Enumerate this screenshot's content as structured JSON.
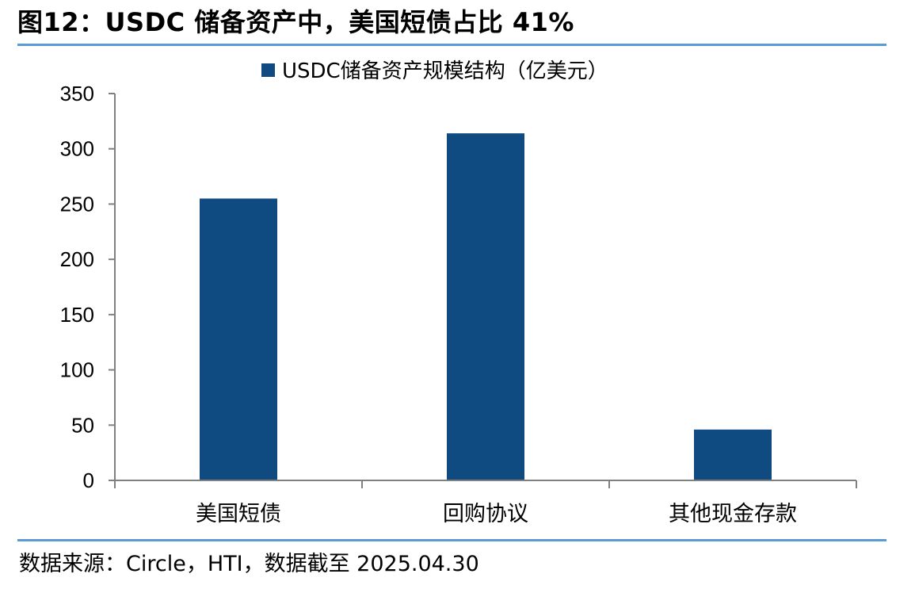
{
  "figure": {
    "title": "图12：USDC 储备资产中，美国短债占比 41%",
    "source": "数据来源：Circle，HTI，数据截至 2025.04.30"
  },
  "colors": {
    "bar": "#0f4a80",
    "rule": "#5b9bd5",
    "axis": "#808080"
  },
  "chart_data": {
    "type": "bar",
    "title": "",
    "xlabel": "",
    "ylabel": "",
    "categories": [
      "美国短债",
      "回购协议",
      "其他现金存款"
    ],
    "series": [
      {
        "name": "USDC储备资产规模结构（亿美元）",
        "values": [
          255,
          314,
          46
        ]
      }
    ],
    "ylim": [
      0,
      350
    ],
    "yticks": [
      0,
      50,
      100,
      150,
      200,
      250,
      300,
      350
    ],
    "legend_position": "top-center",
    "grid": false
  }
}
